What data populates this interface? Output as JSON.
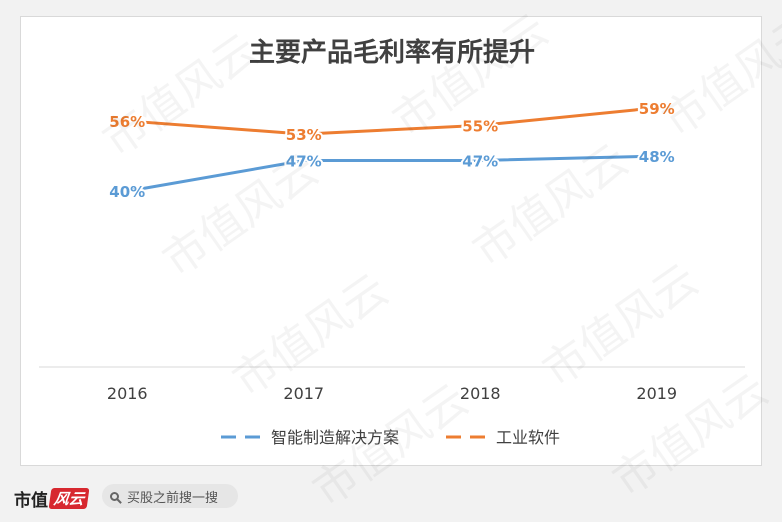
{
  "chart_data": {
    "type": "line",
    "title": "主要产品毛利率有所提升",
    "categories": [
      "2016",
      "2017",
      "2018",
      "2019"
    ],
    "series": [
      {
        "name": "智能制造解决方案",
        "values": [
          40,
          47,
          47,
          48
        ],
        "labels": [
          "40%",
          "47%",
          "47%",
          "48%"
        ],
        "color": "#5b9bd5"
      },
      {
        "name": "工业软件",
        "values": [
          56,
          53,
          55,
          59
        ],
        "labels": [
          "56%",
          "53%",
          "55%",
          "59%"
        ],
        "color": "#ed7d31"
      }
    ],
    "ylim": [
      0,
      66
    ],
    "grid": false,
    "legend": "bottom"
  },
  "watermark": "市值风云",
  "footer": {
    "logo_text": "市值",
    "logo_mark": "风云",
    "search_placeholder": "买股之前搜一搜"
  }
}
